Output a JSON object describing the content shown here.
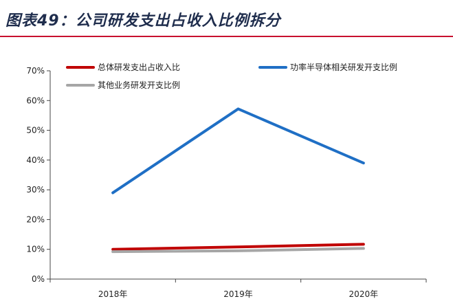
{
  "figure": {
    "title": "图表49：公司研发支出占收入比例拆分",
    "rule_color": "#c8102e"
  },
  "chart_data": {
    "type": "line",
    "categories": [
      "2018年",
      "2019年",
      "2020年"
    ],
    "yticks": [
      "0%",
      "10%",
      "20%",
      "30%",
      "40%",
      "50%",
      "60%",
      "70%"
    ],
    "ylim": [
      0,
      70
    ],
    "series": [
      {
        "name": "总体研发支出占收入比",
        "color": "#c00000",
        "values": [
          10.0,
          10.8,
          11.7
        ]
      },
      {
        "name": "功率半导体相关研发开支比例",
        "color": "#1f6fc5",
        "values": [
          29.0,
          57.2,
          39.0
        ]
      },
      {
        "name": "其他业务研发开支比例",
        "color": "#a6a6a6",
        "values": [
          9.2,
          9.5,
          10.3
        ]
      }
    ],
    "legend_position": "top",
    "grid": false
  }
}
